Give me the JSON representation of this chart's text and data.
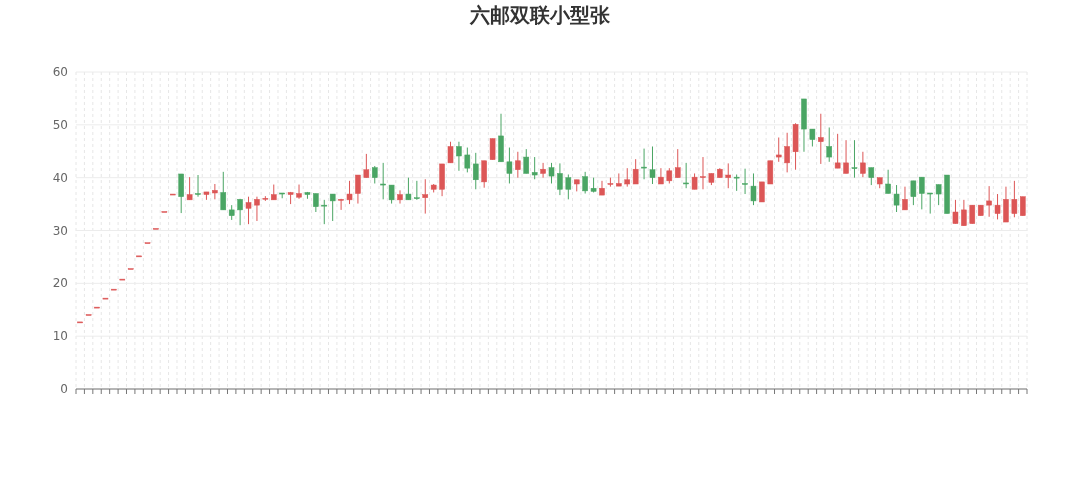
{
  "chart_data": {
    "type": "candlestick",
    "title": "六邮双联小型张",
    "categories": [
      null,
      null,
      null,
      null,
      null,
      null,
      null,
      null,
      null,
      null,
      null,
      null,
      null,
      null,
      null,
      null,
      null,
      null,
      null,
      null,
      null,
      null,
      null,
      null,
      null,
      null,
      null,
      null,
      null,
      null,
      null,
      null,
      null,
      null,
      null,
      null,
      null,
      null,
      null,
      null,
      null,
      null,
      null,
      null,
      null,
      null,
      null,
      null,
      null,
      null,
      null,
      null,
      null,
      null,
      null,
      null,
      null,
      null,
      null,
      null,
      null,
      null,
      null,
      null,
      null,
      null,
      null,
      null,
      null,
      null,
      null,
      null,
      null,
      null,
      null,
      null,
      null,
      null,
      null,
      null,
      null,
      null,
      null,
      null,
      null,
      null,
      null,
      null,
      null,
      null,
      null,
      null,
      null,
      null,
      null,
      null,
      null,
      null,
      null,
      null,
      null,
      null,
      null,
      null,
      null,
      null,
      null,
      null,
      null,
      null,
      null,
      null,
      null
    ],
    "ohlc": [
      [
        12.7,
        12.7,
        12.7,
        12.7
      ],
      [
        14.1,
        14.1,
        14.1,
        14.1
      ],
      [
        15.5,
        15.5,
        15.5,
        15.5
      ],
      [
        17.2,
        17.2,
        17.2,
        17.2
      ],
      [
        18.9,
        18.9,
        18.9,
        18.9
      ],
      [
        20.8,
        20.8,
        20.8,
        20.8
      ],
      [
        22.8,
        22.8,
        22.8,
        22.8
      ],
      [
        25.2,
        25.2,
        25.2,
        25.2
      ],
      [
        27.7,
        27.7,
        27.7,
        27.7
      ],
      [
        30.4,
        30.4,
        30.4,
        30.4
      ],
      [
        33.6,
        33.6,
        33.6,
        33.6
      ],
      [
        36.9,
        36.9,
        36.9,
        36.9
      ],
      [
        40.7,
        40.7,
        33.3,
        36.4
      ],
      [
        35.8,
        40.1,
        35.8,
        36.8
      ],
      [
        37.0,
        40.5,
        36.4,
        36.8
      ],
      [
        36.8,
        37.3,
        35.8,
        37.3
      ],
      [
        37.1,
        38.8,
        35.9,
        37.6
      ],
      [
        37.2,
        41.1,
        33.9,
        33.9
      ],
      [
        33.9,
        34.8,
        32.0,
        32.8
      ],
      [
        35.9,
        36.0,
        31.0,
        33.9
      ],
      [
        34.2,
        36.4,
        31.2,
        35.3
      ],
      [
        34.8,
        36.4,
        31.8,
        35.9
      ],
      [
        36.0,
        36.5,
        35.6,
        36.1
      ],
      [
        35.8,
        38.7,
        35.8,
        36.8
      ],
      [
        37.1,
        37.1,
        36.1,
        36.9
      ],
      [
        36.8,
        37.3,
        35.0,
        37.2
      ],
      [
        36.3,
        38.7,
        36.0,
        37.0
      ],
      [
        37.2,
        37.3,
        36.0,
        36.8
      ],
      [
        37.0,
        37.0,
        33.5,
        34.5
      ],
      [
        34.8,
        35.8,
        31.2,
        34.8
      ],
      [
        36.9,
        36.9,
        31.8,
        35.6
      ],
      [
        35.7,
        36.0,
        33.9,
        35.9
      ],
      [
        35.8,
        39.4,
        35.0,
        36.9
      ],
      [
        37.0,
        40.5,
        35.1,
        40.5
      ],
      [
        40.0,
        44.5,
        40.0,
        41.5
      ],
      [
        41.9,
        42.2,
        38.9,
        40.0
      ],
      [
        38.8,
        42.8,
        35.9,
        38.6
      ],
      [
        38.6,
        38.6,
        35.1,
        35.8
      ],
      [
        35.8,
        37.6,
        35.1,
        36.8
      ],
      [
        36.9,
        40.0,
        35.8,
        35.8
      ],
      [
        36.2,
        39.4,
        35.8,
        36.1
      ],
      [
        36.2,
        39.7,
        33.2,
        36.8
      ],
      [
        37.8,
        38.8,
        37.2,
        38.6
      ],
      [
        37.8,
        42.6,
        36.5,
        42.6
      ],
      [
        42.8,
        46.8,
        42.8,
        45.9
      ],
      [
        45.9,
        46.8,
        41.3,
        44.1
      ],
      [
        44.3,
        45.7,
        41.0,
        41.8
      ],
      [
        42.6,
        44.7,
        37.8,
        39.6
      ],
      [
        39.2,
        43.2,
        38.1,
        43.2
      ],
      [
        43.4,
        47.4,
        43.4,
        47.4
      ],
      [
        47.9,
        52.1,
        43.0,
        43.0
      ],
      [
        43.0,
        45.7,
        38.9,
        40.8
      ],
      [
        41.5,
        44.9,
        40.0,
        43.2
      ],
      [
        43.9,
        45.4,
        40.8,
        40.8
      ],
      [
        41.0,
        43.9,
        39.7,
        40.5
      ],
      [
        40.8,
        42.8,
        40.0,
        41.6
      ],
      [
        41.9,
        42.8,
        38.9,
        40.3
      ],
      [
        40.8,
        42.7,
        36.7,
        37.8
      ],
      [
        40.0,
        40.6,
        35.9,
        37.8
      ],
      [
        38.8,
        39.6,
        37.4,
        39.6
      ],
      [
        40.2,
        41.1,
        37.0,
        37.5
      ],
      [
        38.0,
        40.0,
        37.2,
        37.4
      ],
      [
        36.7,
        39.4,
        36.7,
        38.0
      ],
      [
        38.8,
        40.0,
        38.3,
        38.9
      ],
      [
        38.4,
        40.8,
        38.4,
        38.9
      ],
      [
        38.8,
        41.8,
        38.3,
        39.6
      ],
      [
        38.8,
        43.5,
        38.8,
        41.6
      ],
      [
        42.0,
        45.5,
        39.7,
        41.9
      ],
      [
        41.5,
        45.9,
        38.8,
        40.0
      ],
      [
        38.8,
        41.8,
        38.8,
        40.1
      ],
      [
        39.4,
        41.8,
        38.9,
        41.3
      ],
      [
        40.0,
        45.4,
        40.0,
        41.9
      ],
      [
        39.0,
        42.8,
        38.0,
        38.9
      ],
      [
        37.8,
        40.8,
        37.8,
        40.1
      ],
      [
        40.1,
        43.9,
        37.8,
        40.2
      ],
      [
        39.1,
        40.8,
        38.6,
        40.8
      ],
      [
        40.0,
        41.8,
        40.0,
        41.6
      ],
      [
        40.0,
        42.7,
        38.0,
        40.5
      ],
      [
        40.1,
        40.6,
        37.5,
        40.0
      ],
      [
        38.9,
        41.7,
        36.9,
        38.8
      ],
      [
        38.4,
        40.8,
        34.8,
        35.6
      ],
      [
        35.4,
        39.2,
        35.4,
        39.2
      ],
      [
        38.8,
        43.2,
        38.8,
        43.2
      ],
      [
        43.9,
        47.6,
        43.0,
        44.3
      ],
      [
        42.8,
        48.5,
        41.0,
        45.9
      ],
      [
        44.9,
        50.3,
        41.5,
        50.1
      ],
      [
        54.9,
        54.9,
        44.9,
        49.2
      ],
      [
        49.2,
        49.2,
        45.9,
        47.2
      ],
      [
        46.8,
        52.1,
        42.6,
        47.6
      ],
      [
        45.9,
        49.5,
        43.0,
        43.9
      ],
      [
        41.8,
        48.3,
        41.8,
        42.8
      ],
      [
        40.8,
        47.1,
        40.8,
        42.8
      ],
      [
        41.9,
        47.1,
        40.0,
        41.9
      ],
      [
        40.8,
        44.9,
        40.1,
        42.8
      ],
      [
        41.9,
        41.9,
        38.6,
        40.0
      ],
      [
        38.8,
        40.0,
        38.0,
        40.0
      ],
      [
        38.8,
        41.5,
        37.0,
        37.0
      ],
      [
        36.9,
        38.6,
        33.5,
        34.8
      ],
      [
        33.9,
        38.3,
        33.9,
        35.9
      ],
      [
        39.4,
        39.4,
        34.8,
        36.4
      ],
      [
        40.1,
        40.1,
        34.0,
        37.0
      ],
      [
        37.1,
        37.1,
        33.2,
        36.9
      ],
      [
        38.7,
        38.7,
        34.8,
        36.9
      ],
      [
        40.5,
        40.5,
        33.2,
        33.2
      ],
      [
        31.3,
        35.8,
        31.3,
        33.5
      ],
      [
        30.9,
        35.8,
        30.9,
        33.9
      ],
      [
        31.3,
        34.8,
        31.3,
        34.8
      ],
      [
        32.8,
        34.8,
        32.8,
        34.8
      ],
      [
        34.8,
        38.4,
        32.6,
        35.6
      ],
      [
        33.2,
        36.9,
        32.1,
        34.8
      ],
      [
        31.6,
        38.3,
        31.6,
        35.9
      ],
      [
        33.2,
        39.4,
        32.5,
        35.9
      ],
      [
        32.8,
        36.4,
        32.8,
        36.4
      ]
    ],
    "colors": [
      "#dc5656",
      "#dc5656",
      "#dc5656",
      "#dc5656",
      "#dc5656",
      "#dc5656",
      "#dc5656",
      "#dc5656",
      "#dc5656",
      "#dc5656",
      "#dc5656",
      "#dc5656",
      "#4aa564",
      "#dc5656",
      "#4aa564",
      "#dc5656",
      "#dc5656",
      "#4aa564",
      "#4aa564",
      "#4aa564",
      "#dc5656",
      "#dc5656",
      "#dc5656",
      "#dc5656",
      "#4aa564",
      "#dc5656",
      "#dc5656",
      "#4aa564",
      "#4aa564",
      "#4aa564",
      "#4aa564",
      "#dc5656",
      "#dc5656",
      "#dc5656",
      "#dc5656",
      "#4aa564",
      "#4aa564",
      "#4aa564",
      "#dc5656",
      "#4aa564",
      "#4aa564",
      "#dc5656",
      "#dc5656",
      "#dc5656",
      "#dc5656",
      "#4aa564",
      "#4aa564",
      "#4aa564",
      "#dc5656",
      "#dc5656",
      "#4aa564",
      "#4aa564",
      "#dc5656",
      "#4aa564",
      "#4aa564",
      "#dc5656",
      "#4aa564",
      "#4aa564",
      "#4aa564",
      "#dc5656",
      "#4aa564",
      "#4aa564",
      "#dc5656",
      "#dc5656",
      "#dc5656",
      "#dc5656",
      "#dc5656",
      "#4aa564",
      "#4aa564",
      "#dc5656",
      "#dc5656",
      "#dc5656",
      "#4aa564",
      "#dc5656",
      "#dc5656",
      "#dc5656",
      "#dc5656",
      "#dc5656",
      "#4aa564",
      "#4aa564",
      "#4aa564",
      "#dc5656",
      "#dc5656",
      "#dc5656",
      "#dc5656",
      "#dc5656",
      "#4aa564",
      "#4aa564",
      "#dc5656",
      "#4aa564",
      "#dc5656",
      "#dc5656",
      "#4aa564",
      "#dc5656",
      "#4aa564",
      "#dc5656",
      "#4aa564",
      "#4aa564",
      "#dc5656",
      "#4aa564",
      "#4aa564",
      "#4aa564",
      "#4aa564",
      "#4aa564",
      "#dc5656",
      "#dc5656",
      "#dc5656",
      "#dc5656",
      "#dc5656",
      "#dc5656",
      "#dc5656",
      "#dc5656",
      "#dc5656"
    ],
    "ylim": [
      0,
      60
    ],
    "yticks": [
      0,
      10,
      20,
      30,
      40,
      50,
      60
    ],
    "grid": true,
    "tick_labels": "y"
  }
}
